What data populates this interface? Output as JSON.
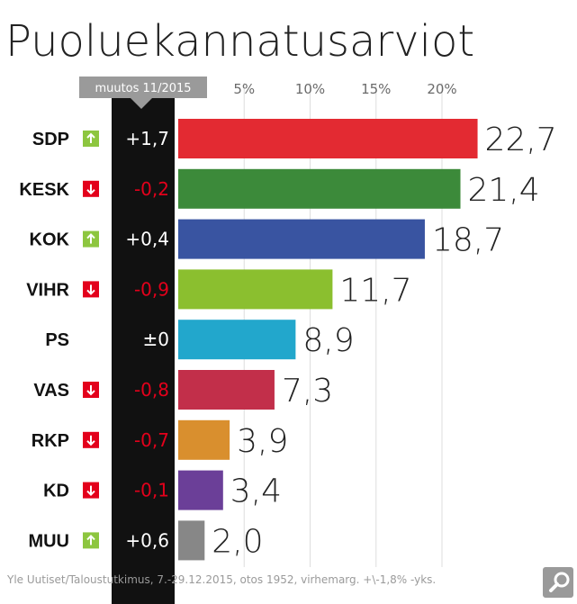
{
  "chart_data": {
    "type": "bar",
    "orientation": "horizontal",
    "title": "Puoluekannatusarviot",
    "change_header": "muutos 11/2015",
    "xlim": [
      0,
      25
    ],
    "x_ticks": [
      5,
      10,
      15,
      20
    ],
    "tick_labels": [
      "5%",
      "10%",
      "15%",
      "20%"
    ],
    "grid": true,
    "categories": [
      "SDP",
      "KESK",
      "KOK",
      "VIHR",
      "PS",
      "VAS",
      "RKP",
      "KD",
      "MUU"
    ],
    "values": [
      22.7,
      21.4,
      18.7,
      11.7,
      8.9,
      7.3,
      3.9,
      3.4,
      2.0
    ],
    "value_labels": [
      "22,7",
      "21,4",
      "18,7",
      "11,7",
      "8,9",
      "7,3",
      "3,9",
      "3,4",
      "2,0"
    ],
    "changes": [
      1.7,
      -0.2,
      0.4,
      -0.9,
      0,
      -0.8,
      -0.7,
      -0.1,
      0.6
    ],
    "change_labels": [
      "+1,7",
      "-0,2",
      "+0,4",
      "-0,9",
      "±0",
      "-0,8",
      "-0,7",
      "-0,1",
      "+0,6"
    ],
    "trend_icons": [
      "arrow-up-icon",
      "arrow-down-icon",
      "arrow-up-icon",
      "arrow-down-icon",
      "none",
      "arrow-down-icon",
      "arrow-down-icon",
      "arrow-down-icon",
      "arrow-up-icon"
    ],
    "colors": [
      "#e32a32",
      "#3c8a3a",
      "#3954a1",
      "#8bbf2f",
      "#22a7cc",
      "#c22f4a",
      "#d98f2e",
      "#6b3f98",
      "#878787"
    ],
    "source": "Yle Uutiset/Taloustutkimus, 7.-29.12.2015, otos 1952, virhemarg. +\\-1,8% -yks."
  },
  "style": {
    "up_color": "#8dc63f",
    "down_color": "#e3001b",
    "positive_change_color": "#ffffff",
    "negative_change_color": "#e3001b",
    "change_column_bg": "#111111",
    "header_bg": "#9a9a9a",
    "grid_color": "#dddddd"
  },
  "ui": {
    "search_icon": "search-icon"
  }
}
